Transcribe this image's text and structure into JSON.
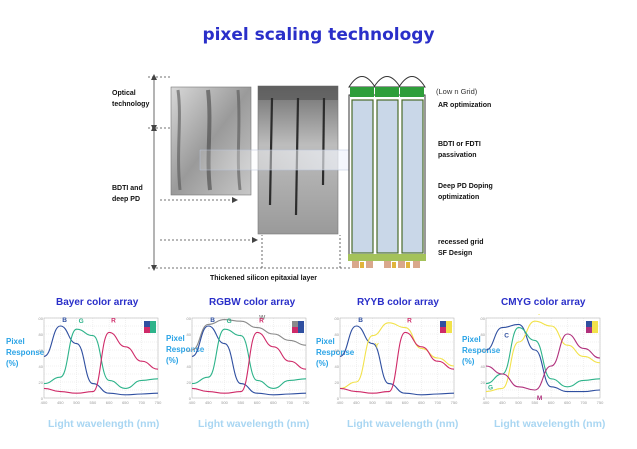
{
  "title": "pixel scaling technology",
  "diagram": {
    "left_labels": {
      "optical": "Optical technology",
      "bdti": "BDTI and deep PD"
    },
    "bottom_label": "Thickened silicon epitaxial layer",
    "right_labels": {
      "grid": "(Low n Grid)",
      "ar": "AR optimization",
      "passivation": "BDTI or FDTI passivation",
      "deep_pd": "Deep PD Doping optimization",
      "recessed": "recessed grid SF Design"
    }
  },
  "colors": {
    "title": "#2a2fc9",
    "axis_label": "#29a3e6",
    "xlabel": "#a9d6f2",
    "blue": "#2f4fa0",
    "green": "#2db38a",
    "red": "#cf2a68",
    "gray": "#8a8a8a",
    "yellow": "#f2e24a",
    "magenta": "#b0307c"
  },
  "chart_data": [
    {
      "type": "line",
      "title": "Bayer color array",
      "ylabel": "Pixel Response (%)",
      "xlabel": "Light wavelength (nm)",
      "x": [
        400,
        450,
        500,
        550,
        600,
        650,
        700,
        750
      ],
      "ylim": [
        0,
        100
      ],
      "series": [
        {
          "name": "B",
          "color": "#2f4fa0",
          "values": [
            52,
            90,
            68,
            18,
            6,
            4,
            5,
            6
          ]
        },
        {
          "name": "G",
          "color": "#2db38a",
          "values": [
            18,
            26,
            86,
            78,
            22,
            12,
            22,
            24
          ]
        },
        {
          "name": "R",
          "color": "#cf2a68",
          "values": [
            12,
            8,
            6,
            8,
            82,
            64,
            46,
            36
          ]
        }
      ]
    },
    {
      "type": "line",
      "title": "RGBW color array",
      "ylabel": "Pixel Response (%)",
      "xlabel": "Light wavelength (nm)",
      "x": [
        400,
        450,
        500,
        550,
        600,
        650,
        700,
        750
      ],
      "ylim": [
        0,
        100
      ],
      "series": [
        {
          "name": "W",
          "color": "#8a8a8a",
          "values": [
            60,
            92,
            98,
            96,
            88,
            80,
            72,
            66
          ]
        },
        {
          "name": "B",
          "color": "#2f4fa0",
          "values": [
            52,
            90,
            68,
            18,
            6,
            4,
            5,
            6
          ]
        },
        {
          "name": "G",
          "color": "#2db38a",
          "values": [
            18,
            26,
            86,
            78,
            22,
            12,
            22,
            24
          ]
        },
        {
          "name": "R",
          "color": "#cf2a68",
          "values": [
            12,
            8,
            6,
            8,
            82,
            64,
            46,
            36
          ]
        }
      ]
    },
    {
      "type": "line",
      "title": "RYYB color array",
      "ylabel": "Pixel Response (%)",
      "xlabel": "Light wavelength (nm)",
      "x": [
        400,
        450,
        500,
        550,
        600,
        650,
        700,
        750
      ],
      "ylim": [
        0,
        100
      ],
      "series": [
        {
          "name": "B",
          "color": "#2f4fa0",
          "values": [
            52,
            90,
            68,
            18,
            6,
            4,
            5,
            6
          ]
        },
        {
          "name": "Y",
          "color": "#f2e24a",
          "values": [
            12,
            20,
            78,
            94,
            88,
            62,
            50,
            40
          ]
        },
        {
          "name": "R",
          "color": "#cf2a68",
          "values": [
            12,
            8,
            6,
            8,
            82,
            64,
            46,
            36
          ]
        }
      ]
    },
    {
      "type": "line",
      "title": "CMYG color array",
      "ylabel": "Pixel Response (%)",
      "xlabel": "Light wavelength (nm)",
      "x": [
        400,
        450,
        500,
        550,
        600,
        650,
        700,
        750
      ],
      "ylim": [
        0,
        100
      ],
      "series": [
        {
          "name": "C",
          "color": "#2f4fa0",
          "values": [
            60,
            88,
            92,
            60,
            14,
            8,
            8,
            10
          ]
        },
        {
          "name": "Y",
          "color": "#f2e24a",
          "values": [
            8,
            12,
            70,
            96,
            90,
            66,
            52,
            44
          ]
        },
        {
          "name": "G",
          "color": "#2db38a",
          "values": [
            18,
            30,
            88,
            72,
            24,
            14,
            22,
            24
          ]
        },
        {
          "name": "M",
          "color": "#b0307c",
          "values": [
            40,
            30,
            14,
            10,
            40,
            80,
            62,
            50
          ]
        }
      ]
    }
  ]
}
